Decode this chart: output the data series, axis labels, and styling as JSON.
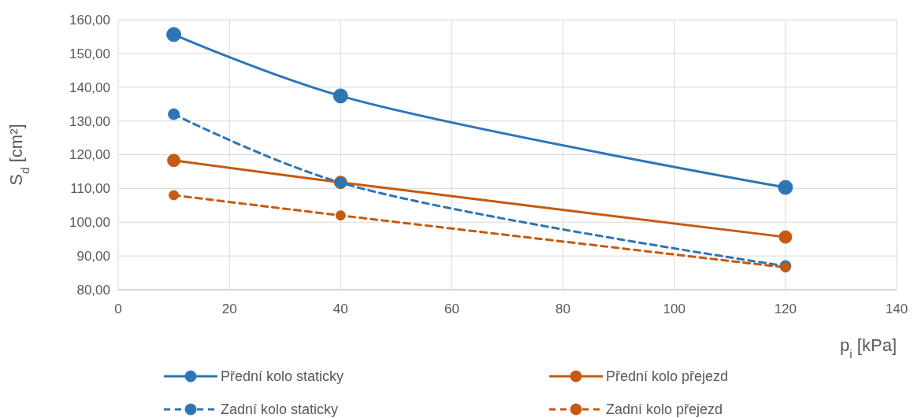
{
  "chart_data": {
    "type": "line",
    "xlabel": "p$_{i}$ [kPa]",
    "ylabel": "S$_{d}$ [cm²]",
    "x": [
      10,
      40,
      120
    ],
    "xlim": [
      0,
      140
    ],
    "xticks": [
      0,
      20,
      40,
      60,
      80,
      100,
      120,
      140
    ],
    "ylim": [
      80,
      160
    ],
    "yticks": [
      {
        "value": 80,
        "label": "80,00"
      },
      {
        "value": 90,
        "label": "90,00"
      },
      {
        "value": 100,
        "label": "100,00"
      },
      {
        "value": 110,
        "label": "110,00"
      },
      {
        "value": 120,
        "label": "120,00"
      },
      {
        "value": 130,
        "label": "130,00"
      },
      {
        "value": 140,
        "label": "140,00"
      },
      {
        "value": 150,
        "label": "150,00"
      },
      {
        "value": 160,
        "label": "160,00"
      }
    ],
    "grid": true,
    "legend": "bottom",
    "marker": "circle",
    "series": [
      {
        "name": "Přední kolo staticky",
        "color": "#2e75b6",
        "values": [
          155.6,
          137.4,
          110.3
        ],
        "line_style": "solid"
      },
      {
        "name": "Přední kolo přejezd",
        "color": "#c55a11",
        "values": [
          118.3,
          111.8,
          95.6
        ],
        "line_style": "solid"
      },
      {
        "name": "Zadní kolo staticky",
        "color": "#2e75b6",
        "values": [
          132.0,
          111.7,
          87.0
        ],
        "line_style": "dashed"
      },
      {
        "name": "Zadní kolo přejezd",
        "color": "#c55a11",
        "values": [
          108.0,
          102.0,
          86.6
        ],
        "line_style": "dashed"
      }
    ]
  }
}
